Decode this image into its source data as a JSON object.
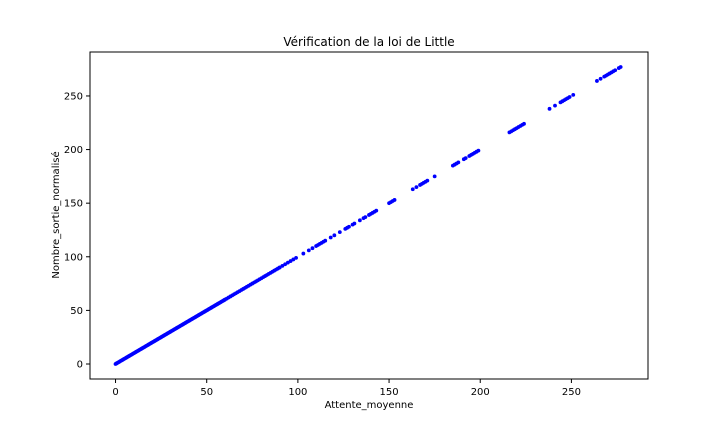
{
  "chart_data": {
    "type": "scatter",
    "title": "Vérification de la loi de Little",
    "xlabel": "Attente_moyenne",
    "ylabel": "Nombre_sortie_normalisé",
    "xlim": [
      -14,
      292
    ],
    "ylim": [
      -14,
      291
    ],
    "xticks": [
      0,
      50,
      100,
      150,
      200,
      250
    ],
    "yticks": [
      0,
      50,
      100,
      150,
      200,
      250
    ],
    "grid": false,
    "marker_color": "#0000ff",
    "series": [
      {
        "segments": [
          [
            0,
            60,
            0.5
          ],
          [
            60,
            90,
            1.0
          ],
          [
            90,
            100,
            1.5
          ]
        ],
        "points": [
          [
            103,
            103
          ],
          [
            106,
            106
          ],
          [
            108,
            108
          ],
          [
            110,
            110
          ],
          [
            111,
            111
          ],
          [
            112,
            112
          ],
          [
            113,
            113
          ],
          [
            114,
            114
          ],
          [
            115,
            115
          ],
          [
            118,
            118
          ],
          [
            120,
            120
          ],
          [
            123,
            123
          ],
          [
            126,
            126
          ],
          [
            127,
            127
          ],
          [
            128,
            128
          ],
          [
            130,
            130
          ],
          [
            131,
            131
          ],
          [
            134,
            134
          ],
          [
            136,
            136
          ],
          [
            137,
            137
          ],
          [
            139,
            139
          ],
          [
            140,
            140
          ],
          [
            141,
            141
          ],
          [
            142,
            142
          ],
          [
            143,
            143
          ],
          [
            150,
            150
          ],
          [
            151,
            151
          ],
          [
            152,
            152
          ],
          [
            153,
            153
          ],
          [
            163,
            163
          ],
          [
            165,
            165
          ],
          [
            167,
            167
          ],
          [
            168,
            168
          ],
          [
            169,
            169
          ],
          [
            170,
            170
          ],
          [
            171,
            171
          ],
          [
            175,
            175
          ],
          [
            185,
            185
          ],
          [
            186,
            186
          ],
          [
            187,
            187
          ],
          [
            188,
            188
          ],
          [
            191,
            191
          ],
          [
            192,
            192
          ],
          [
            194,
            194
          ],
          [
            195,
            195
          ],
          [
            196,
            196
          ],
          [
            197,
            197
          ],
          [
            198,
            198
          ],
          [
            199,
            199
          ],
          [
            216,
            216
          ],
          [
            217,
            217
          ],
          [
            218,
            218
          ],
          [
            219,
            219
          ],
          [
            220,
            220
          ],
          [
            221,
            221
          ],
          [
            222,
            222
          ],
          [
            223,
            223
          ],
          [
            224,
            224
          ],
          [
            238,
            238
          ],
          [
            241,
            241
          ],
          [
            244,
            244
          ],
          [
            245,
            245
          ],
          [
            246,
            246
          ],
          [
            247,
            247
          ],
          [
            248,
            248
          ],
          [
            249,
            249
          ],
          [
            251,
            251
          ],
          [
            264,
            264
          ],
          [
            266,
            266
          ],
          [
            268,
            268
          ],
          [
            269,
            269
          ],
          [
            270,
            270
          ],
          [
            271,
            271
          ],
          [
            272,
            272
          ],
          [
            273,
            273
          ],
          [
            274,
            274
          ],
          [
            276,
            276
          ],
          [
            277,
            277
          ]
        ]
      }
    ]
  }
}
